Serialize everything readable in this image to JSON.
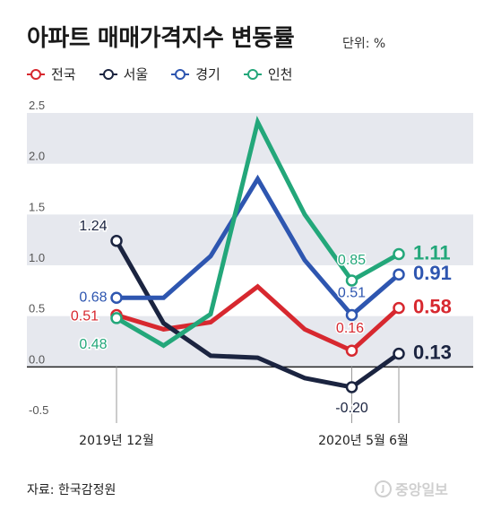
{
  "title": "아파트 매매가격지수 변동률",
  "unit": "단위: %",
  "source": "자료: 한국감정원",
  "watermark": "중앙일보",
  "watermark_mark": "J",
  "chart_data": {
    "type": "line",
    "title": "아파트 매매가격지수 변동률",
    "ylim": [
      -0.5,
      2.5
    ],
    "yticks": [
      "2.5",
      "2.0",
      "1.5",
      "1.0",
      "0.5",
      "0.0",
      "-0.5"
    ],
    "ytick_values": [
      2.5,
      2.0,
      1.5,
      1.0,
      0.5,
      0.0,
      -0.5
    ],
    "grid": "alternating horizontal bands",
    "legend_position": "top-left",
    "x_labels": [
      {
        "index": 0,
        "label": "2019년 12월"
      },
      {
        "index": 5,
        "label": "2020년 5월"
      },
      {
        "index": 6,
        "label": "6월"
      }
    ],
    "x": [
      "2019-12",
      "2020-01",
      "2020-02",
      "2020-03",
      "2020-04",
      "2020-05",
      "2020-06"
    ],
    "series": [
      {
        "name": "전국",
        "color": "#d7282f",
        "values": [
          0.51,
          0.37,
          0.44,
          0.79,
          0.37,
          0.16,
          0.58
        ],
        "labels": [
          {
            "index": 0,
            "text": "0.51"
          },
          {
            "index": 5,
            "text": "0.16"
          },
          {
            "index": 6,
            "text": "0.58"
          }
        ]
      },
      {
        "name": "서울",
        "color": "#1b2440",
        "values": [
          1.24,
          0.43,
          0.11,
          0.09,
          -0.11,
          -0.2,
          0.13
        ],
        "labels": [
          {
            "index": 0,
            "text": "1.24"
          },
          {
            "index": 5,
            "text": "-0.20"
          },
          {
            "index": 6,
            "text": "0.13"
          }
        ]
      },
      {
        "name": "경기",
        "color": "#2e56b0",
        "values": [
          0.68,
          0.68,
          1.09,
          1.85,
          1.05,
          0.51,
          0.91
        ],
        "labels": [
          {
            "index": 0,
            "text": "0.68"
          },
          {
            "index": 5,
            "text": "0.51"
          },
          {
            "index": 6,
            "text": "0.91"
          }
        ]
      },
      {
        "name": "인천",
        "color": "#23a77a",
        "values": [
          0.48,
          0.21,
          0.52,
          2.41,
          1.5,
          0.85,
          1.11
        ],
        "labels": [
          {
            "index": 0,
            "text": "0.48"
          },
          {
            "index": 5,
            "text": "0.85"
          },
          {
            "index": 6,
            "text": "1.11"
          }
        ]
      }
    ]
  }
}
